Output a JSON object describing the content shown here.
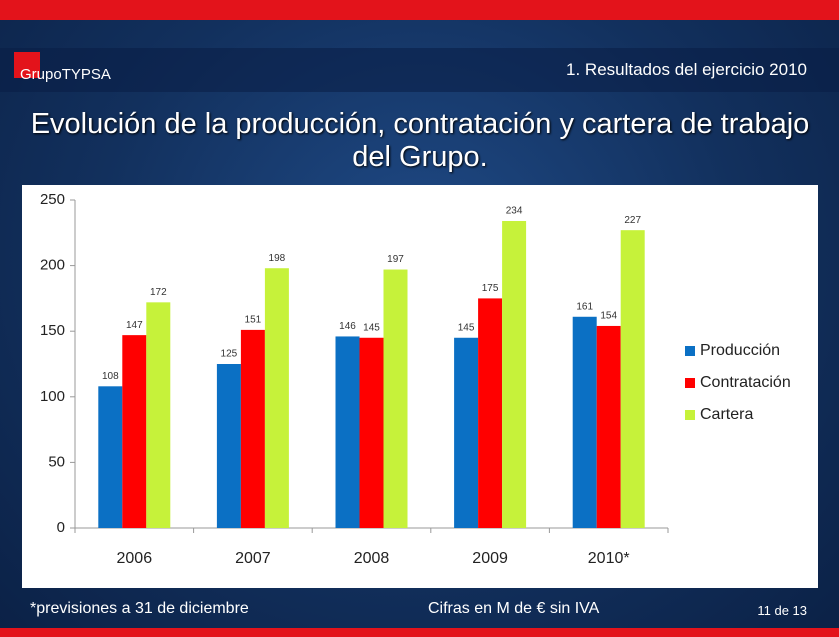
{
  "brand": "GrupoTYPSA",
  "section": "1. Resultados del ejercicio 2010",
  "title": "Evolución de la producción, contratación y cartera de trabajo del Grupo.",
  "footer": {
    "note": "*previsiones a 31 de diciembre",
    "units": "Cifras en M de € sin IVA",
    "page": "11 de 13"
  },
  "chart_data": {
    "type": "bar",
    "categories": [
      "2006",
      "2007",
      "2008",
      "2009",
      "2010*"
    ],
    "series": [
      {
        "name": "Producción",
        "color": "#0b70c4",
        "values": [
          108,
          125,
          146,
          145,
          161
        ]
      },
      {
        "name": "Contratación",
        "color": "#ff0000",
        "values": [
          147,
          151,
          145,
          175,
          154
        ]
      },
      {
        "name": "Cartera",
        "color": "#c6f23a",
        "values": [
          172,
          198,
          197,
          234,
          227
        ]
      }
    ],
    "ylim": [
      0,
      250
    ],
    "yticks": [
      0,
      50,
      100,
      150,
      200,
      250
    ],
    "legend": "right"
  }
}
